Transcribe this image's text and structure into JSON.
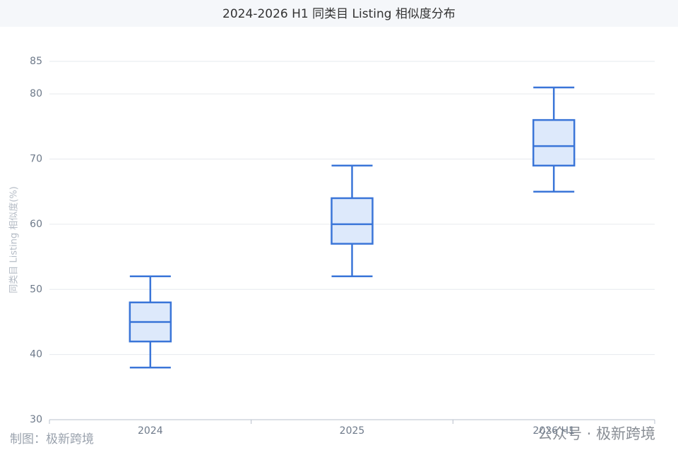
{
  "chart_data": {
    "type": "box",
    "title": "2024-2026 H1 同类目 Listing 相似度分布",
    "y_label": "同类目 Listing 相似度(%)",
    "categories": [
      "2024",
      "2025",
      "2026 H1"
    ],
    "min": [
      38,
      52,
      65
    ],
    "q1": [
      42,
      57,
      69
    ],
    "median": [
      45,
      60,
      72
    ],
    "q3": [
      48,
      64,
      76
    ],
    "max": [
      52,
      69,
      81
    ],
    "color": "#3a75d8",
    "fill": "#dde9fb",
    "ylim": [
      30,
      85
    ],
    "yticks": [
      30,
      40,
      50,
      60,
      70,
      80,
      85
    ],
    "grid": true,
    "source": "制图：极新跨境",
    "watermark": "公众号 · 极新跨境"
  }
}
